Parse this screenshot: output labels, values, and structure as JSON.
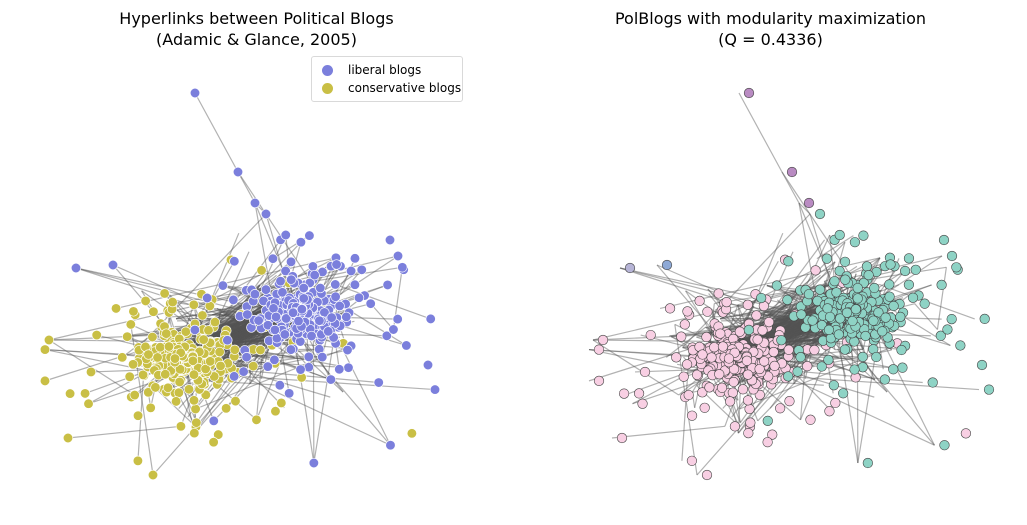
{
  "panels": {
    "left": {
      "title_line1": "Hyperlinks between Political Blogs",
      "title_line2": "(Adamic & Glance, 2005)",
      "legend": [
        {
          "label": "liberal blogs",
          "color": "#7b7fdc"
        },
        {
          "label": "conservative blogs",
          "color": "#c9bf45"
        }
      ]
    },
    "right": {
      "title_line1": "PolBlogs with modularity maximization",
      "title_line2": "(Q = 0.4336)"
    }
  },
  "colors": {
    "liberal": "#7b7fdc",
    "conservative": "#c9bf45",
    "community_a": "#f8cfe3",
    "community_b": "#8ed3c5",
    "community_c": "#b98bc2",
    "community_d": "#8ea9d6",
    "community_e": "#b6b4d6",
    "edge": "#555555"
  }
}
